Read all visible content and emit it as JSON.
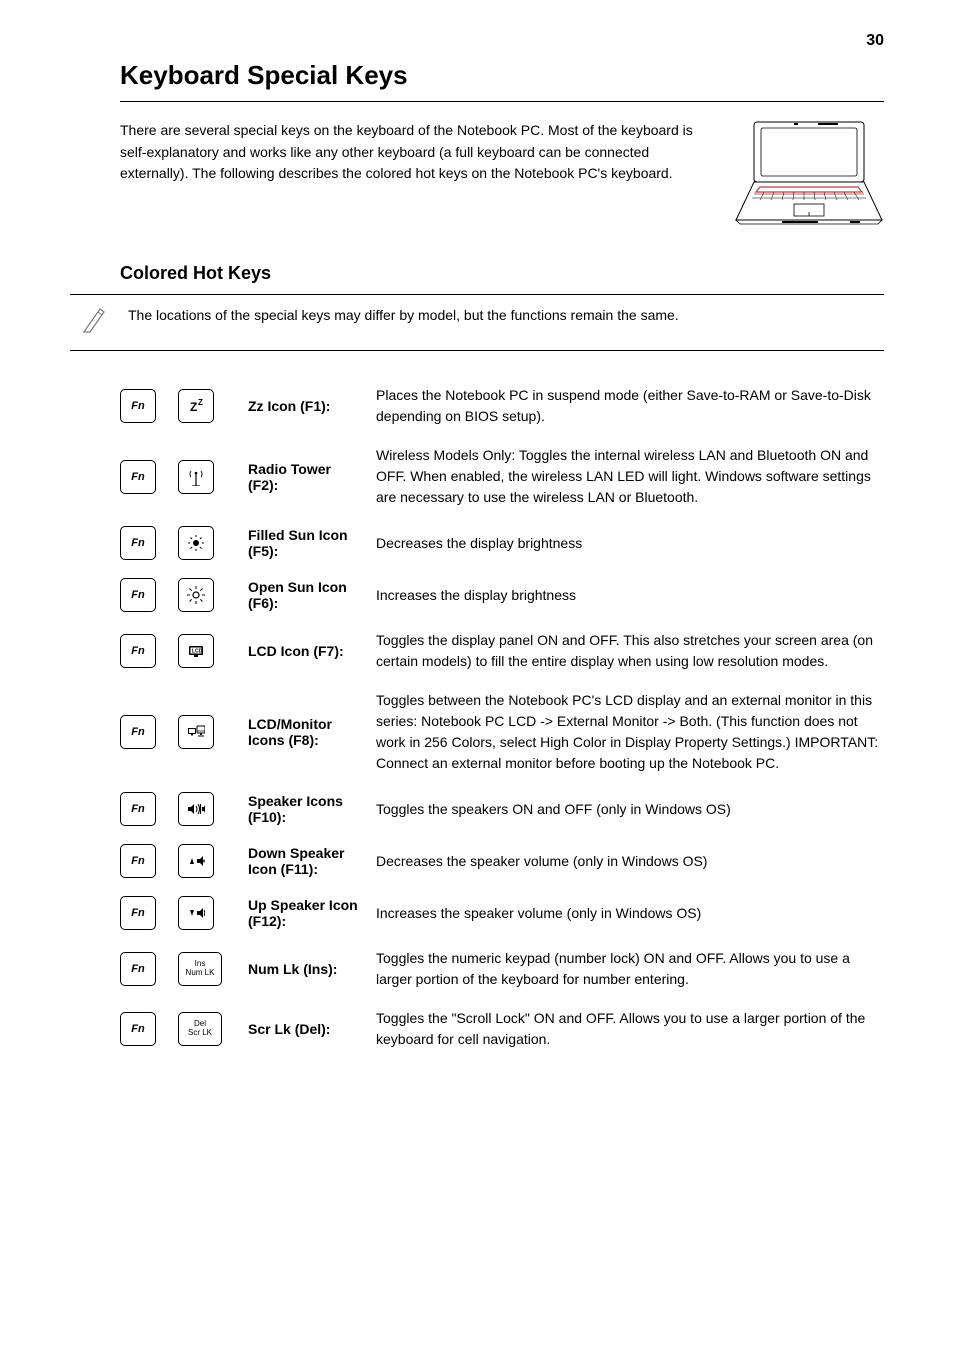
{
  "page": {
    "number": "30",
    "title": "Keyboard Special Keys",
    "intro": "There are several special keys on the keyboard of the Notebook PC. Most of the keyboard is self-explanatory and works like any other keyboard (a full keyboard can be connected externally). The following describes the colored hot keys on the Notebook PC's keyboard."
  },
  "colored_keys_heading": "Colored Hot Keys",
  "note_text": "The locations of the special keys may differ by model, but the functions remain the same.",
  "hotkeys": [
    {
      "icon": "zz",
      "label": "Zz Icon (F1):",
      "desc": "Places the Notebook PC in suspend mode (either Save-to-RAM or Save-to-Disk depending on BIOS setup)."
    },
    {
      "icon": "radio",
      "label": "Radio Tower (F2):",
      "desc": "Wireless Models Only: Toggles the internal wireless LAN and Bluetooth ON and OFF. When enabled, the wireless LAN LED will light. Windows software settings are necessary to use the wireless LAN or Bluetooth."
    },
    {
      "icon": "sun-dim",
      "label": "Filled Sun Icon (F5):",
      "desc": "Decreases the display brightness"
    },
    {
      "icon": "sun-bright",
      "label": "Open Sun Icon (F6):",
      "desc": "Increases the display brightness"
    },
    {
      "icon": "lcd",
      "label": "LCD Icon (F7):",
      "desc": "Toggles the display panel ON and OFF. This also stretches your screen area (on certain models) to fill the entire display when using low resolution modes."
    },
    {
      "icon": "lcd-monitor",
      "label": "LCD/Monitor Icons (F8):",
      "desc": "Toggles between the Notebook PC's LCD display and an external monitor in this series: Notebook PC LCD -> External Monitor -> Both. (This function does not work in 256 Colors, select High Color in Display Property Settings.) IMPORTANT: Connect an external monitor before booting up the Notebook PC."
    },
    {
      "icon": "speakers",
      "label": "Speaker Icons (F10):",
      "desc": "Toggles the speakers ON and OFF (only in Windows OS)"
    },
    {
      "icon": "vol-down",
      "label": "Down Speaker Icon (F11):",
      "desc": "Decreases the speaker volume (only in Windows OS)"
    },
    {
      "icon": "vol-up",
      "label": "Up Speaker Icon (F12):",
      "desc": "Increases the speaker volume (only in Windows OS)"
    },
    {
      "icon": "text-ins",
      "text_top": "Ins",
      "text_bottom": "Num LK",
      "label": "Num Lk (Ins):",
      "desc": "Toggles the numeric keypad (number lock) ON and OFF. Allows you to use a larger portion of the keyboard for number entering."
    },
    {
      "icon": "text-del",
      "text_top": "Del",
      "text_bottom": "Scr LK",
      "label": "Scr Lk (Del):",
      "desc": "Toggles the \"Scroll Lock\" ON and OFF. Allows you to use a larger portion of the keyboard for cell navigation."
    }
  ],
  "fn_label": "Fn",
  "colors": {
    "text": "#000000",
    "background": "#ffffff",
    "rule": "#000000",
    "kb_highlight": "#d23b3b"
  },
  "typography": {
    "title_fontsize": 26,
    "body_fontsize": 14,
    "section_heading_fontsize": 18,
    "label_weight": "bold"
  }
}
